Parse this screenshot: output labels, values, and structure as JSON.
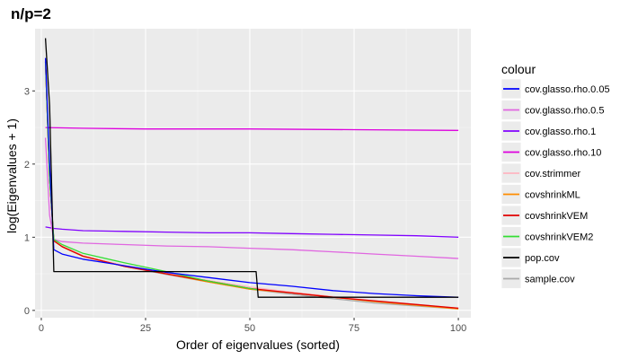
{
  "chart_data": {
    "type": "line",
    "title": "n/p=2",
    "xlabel": "Order of eigenvalues (sorted)",
    "ylabel": "log(Eigenvalues + 1)",
    "xlim": [
      -1.5,
      103
    ],
    "ylim": [
      -0.1,
      3.85
    ],
    "xticks": [
      0,
      25,
      50,
      75,
      100
    ],
    "yticks": [
      0,
      1,
      2,
      3
    ],
    "grid": true,
    "legend": {
      "title": "colour",
      "position": "right"
    },
    "series": [
      {
        "name": "cov.glasso.rho.0.05",
        "color": "#0000ff",
        "x": [
          1,
          2,
          3,
          5,
          10,
          20,
          30,
          40,
          50,
          60,
          70,
          80,
          90,
          100
        ],
        "y": [
          3.45,
          2.0,
          0.83,
          0.77,
          0.7,
          0.61,
          0.52,
          0.45,
          0.38,
          0.33,
          0.27,
          0.23,
          0.2,
          0.18
        ]
      },
      {
        "name": "cov.glasso.rho.0.5",
        "color": "#e066e0",
        "x": [
          1,
          2,
          3,
          5,
          10,
          20,
          30,
          40,
          50,
          60,
          70,
          80,
          90,
          100
        ],
        "y": [
          2.36,
          1.3,
          0.97,
          0.94,
          0.92,
          0.9,
          0.88,
          0.87,
          0.85,
          0.83,
          0.8,
          0.77,
          0.74,
          0.71
        ]
      },
      {
        "name": "cov.glasso.rho.1",
        "color": "#8000ff",
        "x": [
          1,
          3,
          5,
          10,
          20,
          30,
          40,
          50,
          60,
          70,
          80,
          90,
          100
        ],
        "y": [
          1.14,
          1.12,
          1.11,
          1.09,
          1.08,
          1.07,
          1.06,
          1.06,
          1.05,
          1.04,
          1.03,
          1.02,
          1.0
        ]
      },
      {
        "name": "cov.glasso.rho.10",
        "color": "#dd00dd",
        "x": [
          1,
          10,
          25,
          50,
          75,
          100
        ],
        "y": [
          2.5,
          2.49,
          2.48,
          2.48,
          2.47,
          2.46
        ]
      },
      {
        "name": "cov.strimmer",
        "color": "#ffb6c1",
        "x": [
          1,
          2,
          3,
          5,
          10,
          20,
          30,
          40,
          50,
          60,
          70,
          80,
          90,
          100
        ],
        "y": [
          3.4,
          1.8,
          0.96,
          0.88,
          0.75,
          0.61,
          0.51,
          0.41,
          0.32,
          0.25,
          0.19,
          0.13,
          0.08,
          0.03
        ]
      },
      {
        "name": "covshrinkML",
        "color": "#ff8c00",
        "x": [
          1,
          2,
          3,
          5,
          10,
          20,
          30,
          40,
          50,
          60,
          70,
          80,
          90,
          100
        ],
        "y": [
          3.4,
          1.8,
          0.95,
          0.87,
          0.74,
          0.6,
          0.5,
          0.39,
          0.29,
          0.24,
          0.18,
          0.12,
          0.07,
          0.02
        ]
      },
      {
        "name": "covshrinkVEM",
        "color": "#e00000",
        "x": [
          1,
          2,
          3,
          5,
          10,
          20,
          30,
          40,
          50,
          60,
          70,
          80,
          90,
          100
        ],
        "y": [
          3.4,
          1.8,
          0.95,
          0.87,
          0.74,
          0.6,
          0.5,
          0.4,
          0.3,
          0.24,
          0.18,
          0.13,
          0.08,
          0.03
        ]
      },
      {
        "name": "covshrinkVEM2",
        "color": "#33dd33",
        "x": [
          1,
          2,
          3,
          5,
          10,
          20,
          30,
          40,
          50,
          52
        ],
        "y": [
          3.4,
          1.8,
          0.97,
          0.9,
          0.78,
          0.65,
          0.53,
          0.4,
          0.3,
          0.28
        ]
      },
      {
        "name": "pop.cov",
        "color": "#000000",
        "x": [
          1,
          2,
          3,
          3,
          51.5,
          52,
          100
        ],
        "y": [
          3.72,
          2.8,
          0.53,
          0.53,
          0.53,
          0.18,
          0.18
        ]
      },
      {
        "name": "sample.cov",
        "color": "#aaaaaa",
        "x": [
          1,
          2,
          3,
          5,
          10,
          20,
          30,
          40,
          50,
          60,
          70,
          80,
          90,
          100
        ],
        "y": [
          3.4,
          1.8,
          0.95,
          0.87,
          0.74,
          0.6,
          0.49,
          0.39,
          0.29,
          0.22,
          0.16,
          0.1,
          0.06,
          0.02
        ]
      }
    ]
  }
}
